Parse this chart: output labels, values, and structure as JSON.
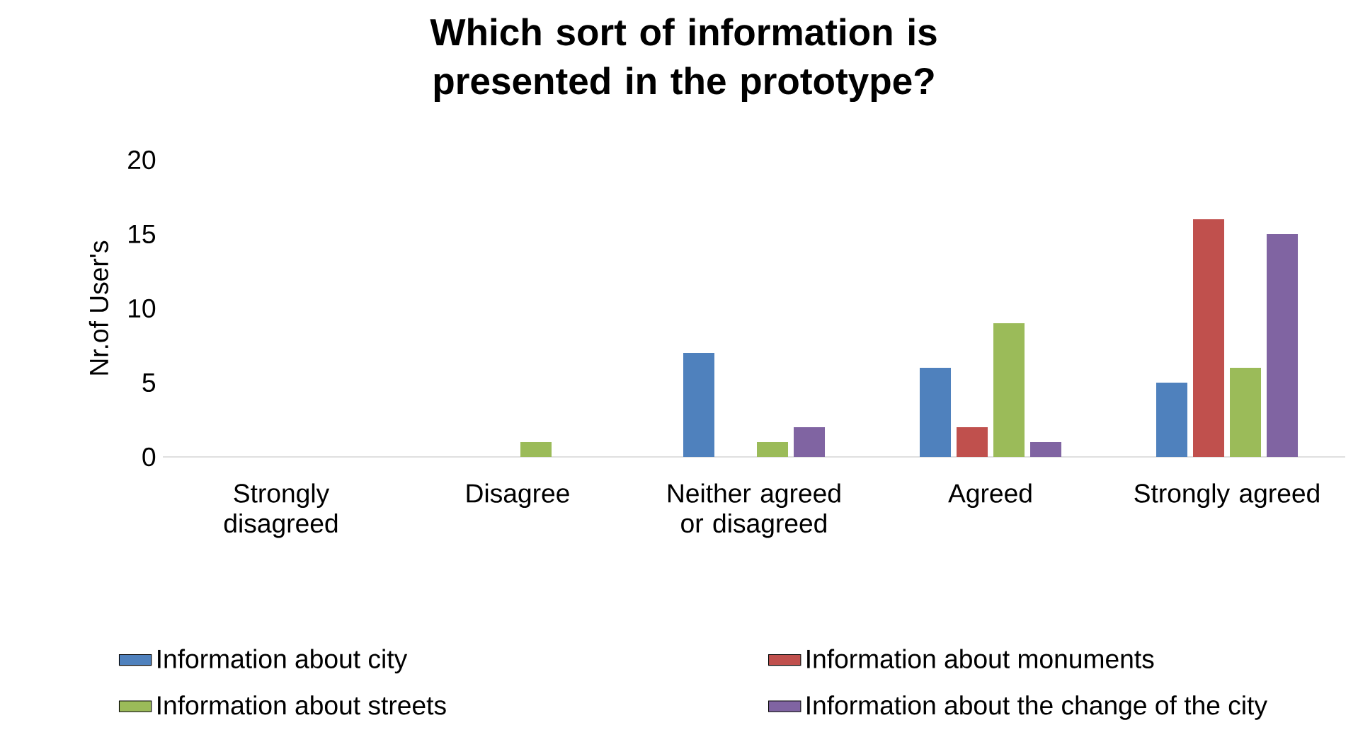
{
  "chart_data": {
    "type": "bar",
    "title": "Which sort of information is presented in the prototype?",
    "ylabel": "Nr.of User's",
    "categories": [
      "Strongly disagreed",
      "Disagree",
      "Neither agreed or disagreed",
      "Agreed",
      "Strongly agreed"
    ],
    "series": [
      {
        "name": "Information about city",
        "color": "#4f81bd",
        "values": [
          0,
          0,
          7,
          6,
          5
        ]
      },
      {
        "name": "Information about monuments",
        "color": "#c0504d",
        "values": [
          0,
          0,
          0,
          2,
          16
        ]
      },
      {
        "name": "Information about streets",
        "color": "#9bbb59",
        "values": [
          0,
          1,
          1,
          9,
          6
        ]
      },
      {
        "name": "Information about the change of the city",
        "color": "#8064a2",
        "values": [
          0,
          0,
          2,
          1,
          15
        ]
      }
    ],
    "ylim": [
      0,
      20
    ],
    "yticks": [
      0,
      5,
      10,
      15,
      20
    ],
    "legend": "bottom"
  }
}
